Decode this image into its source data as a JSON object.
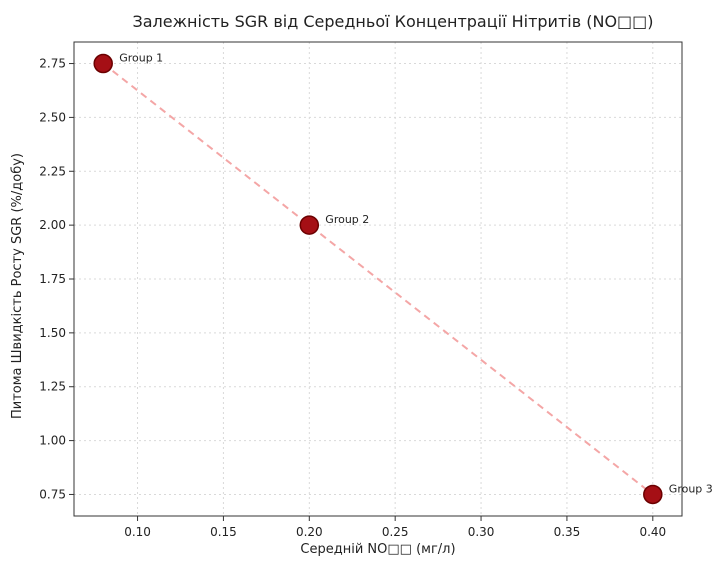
{
  "chart_data": {
    "type": "scatter",
    "title": "Залежність SGR від Середньої Концентрації Нітритів (NO□□)",
    "xlabel": "Середній NO□□ (мг/л)",
    "ylabel": "Питома Швидкість Росту SGR (%/добу)",
    "xlim": [
      0.063,
      0.417
    ],
    "ylim": [
      0.65,
      2.85
    ],
    "grid": true,
    "x_ticks": [
      0.1,
      0.15,
      0.2,
      0.25,
      0.3,
      0.35,
      0.4
    ],
    "x_tick_labels": [
      "0.10",
      "0.15",
      "0.20",
      "0.25",
      "0.30",
      "0.35",
      "0.40"
    ],
    "y_ticks": [
      0.75,
      1.0,
      1.25,
      1.5,
      1.75,
      2.0,
      2.25,
      2.5,
      2.75
    ],
    "y_tick_labels": [
      "0.75",
      "1.00",
      "1.25",
      "1.50",
      "1.75",
      "2.00",
      "2.25",
      "2.50",
      "2.75"
    ],
    "points": [
      {
        "x": 0.08,
        "y": 2.75,
        "label": "Group 1"
      },
      {
        "x": 0.2,
        "y": 2.0,
        "label": "Group 2"
      },
      {
        "x": 0.4,
        "y": 0.75,
        "label": "Group 3"
      }
    ],
    "trend_line": {
      "x": [
        0.08,
        0.2,
        0.4
      ],
      "y": [
        2.75,
        2.0,
        0.75
      ],
      "style": "dashed"
    },
    "colors": {
      "point_fill": "#a50f15",
      "point_stroke": "#6b0000",
      "trend_line": "#f4a6a6",
      "grid": "#d9d9d9",
      "axis": "#333333"
    }
  }
}
